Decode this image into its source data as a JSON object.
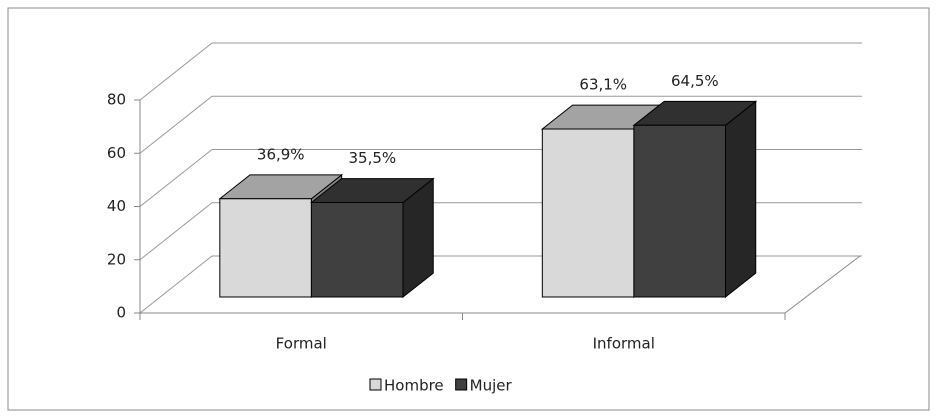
{
  "chart_data": {
    "type": "bar3d",
    "categories": [
      "Formal",
      "Informal"
    ],
    "series": [
      {
        "name": "Hombre",
        "color": "#d9d9d9",
        "values": [
          36.9,
          63.1
        ],
        "value_labels": [
          "36,9%",
          "63,1%"
        ]
      },
      {
        "name": "Mujer",
        "color": "#404040",
        "values": [
          35.5,
          64.5
        ],
        "value_labels": [
          "35,5%",
          "64,5%"
        ]
      }
    ],
    "ylim": [
      0,
      80
    ],
    "yticks": [
      0,
      20,
      40,
      60,
      80
    ],
    "grid": true,
    "legend": "bottom"
  }
}
